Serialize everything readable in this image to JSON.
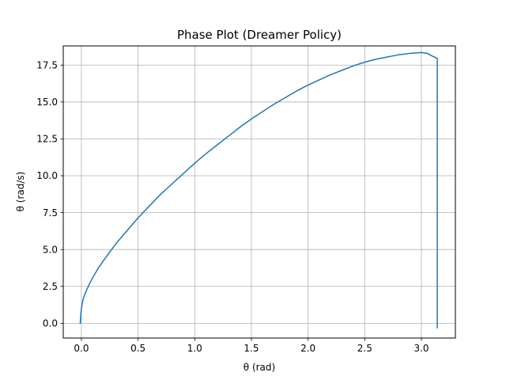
{
  "chart_data": {
    "type": "line",
    "title": "Phase Plot (Dreamer Policy)",
    "xlabel": "θ (rad)",
    "ylabel": "θ (rad/s)",
    "xlim": [
      -0.16,
      3.3
    ],
    "ylim": [
      -1.0,
      18.8
    ],
    "xticks": [
      0.0,
      0.5,
      1.0,
      1.5,
      2.0,
      2.5,
      3.0
    ],
    "xtick_labels": [
      "0.0",
      "0.5",
      "1.0",
      "1.5",
      "2.0",
      "2.5",
      "3.0"
    ],
    "yticks": [
      0.0,
      2.5,
      5.0,
      7.5,
      10.0,
      12.5,
      15.0,
      17.5
    ],
    "ytick_labels": [
      "0.0",
      "2.5",
      "5.0",
      "7.5",
      "10.0",
      "12.5",
      "15.0",
      "17.5"
    ],
    "grid": true,
    "series": [
      {
        "color": "#1f77b4",
        "x": [
          -0.01,
          -0.005,
          0.0,
          0.01,
          0.02,
          0.04,
          0.07,
          0.1,
          0.15,
          0.2,
          0.3,
          0.4,
          0.5,
          0.6,
          0.7,
          0.8,
          0.9,
          1.0,
          1.1,
          1.2,
          1.3,
          1.4,
          1.5,
          1.6,
          1.7,
          1.8,
          1.9,
          2.0,
          2.1,
          2.2,
          2.3,
          2.4,
          2.5,
          2.6,
          2.7,
          2.8,
          2.9,
          3.0,
          3.05,
          3.1,
          3.14,
          3.14,
          3.14,
          3.14,
          3.14,
          3.14
        ],
        "y": [
          0.0,
          0.6,
          1.0,
          1.45,
          1.75,
          2.15,
          2.65,
          3.1,
          3.75,
          4.3,
          5.35,
          6.25,
          7.15,
          7.95,
          8.75,
          9.45,
          10.15,
          10.85,
          11.5,
          12.1,
          12.7,
          13.3,
          13.85,
          14.35,
          14.85,
          15.3,
          15.75,
          16.15,
          16.5,
          16.85,
          17.15,
          17.45,
          17.7,
          17.9,
          18.05,
          18.2,
          18.3,
          18.35,
          18.3,
          18.1,
          17.95,
          17.85,
          17.0,
          8.0,
          0.5,
          -0.3
        ]
      }
    ]
  }
}
